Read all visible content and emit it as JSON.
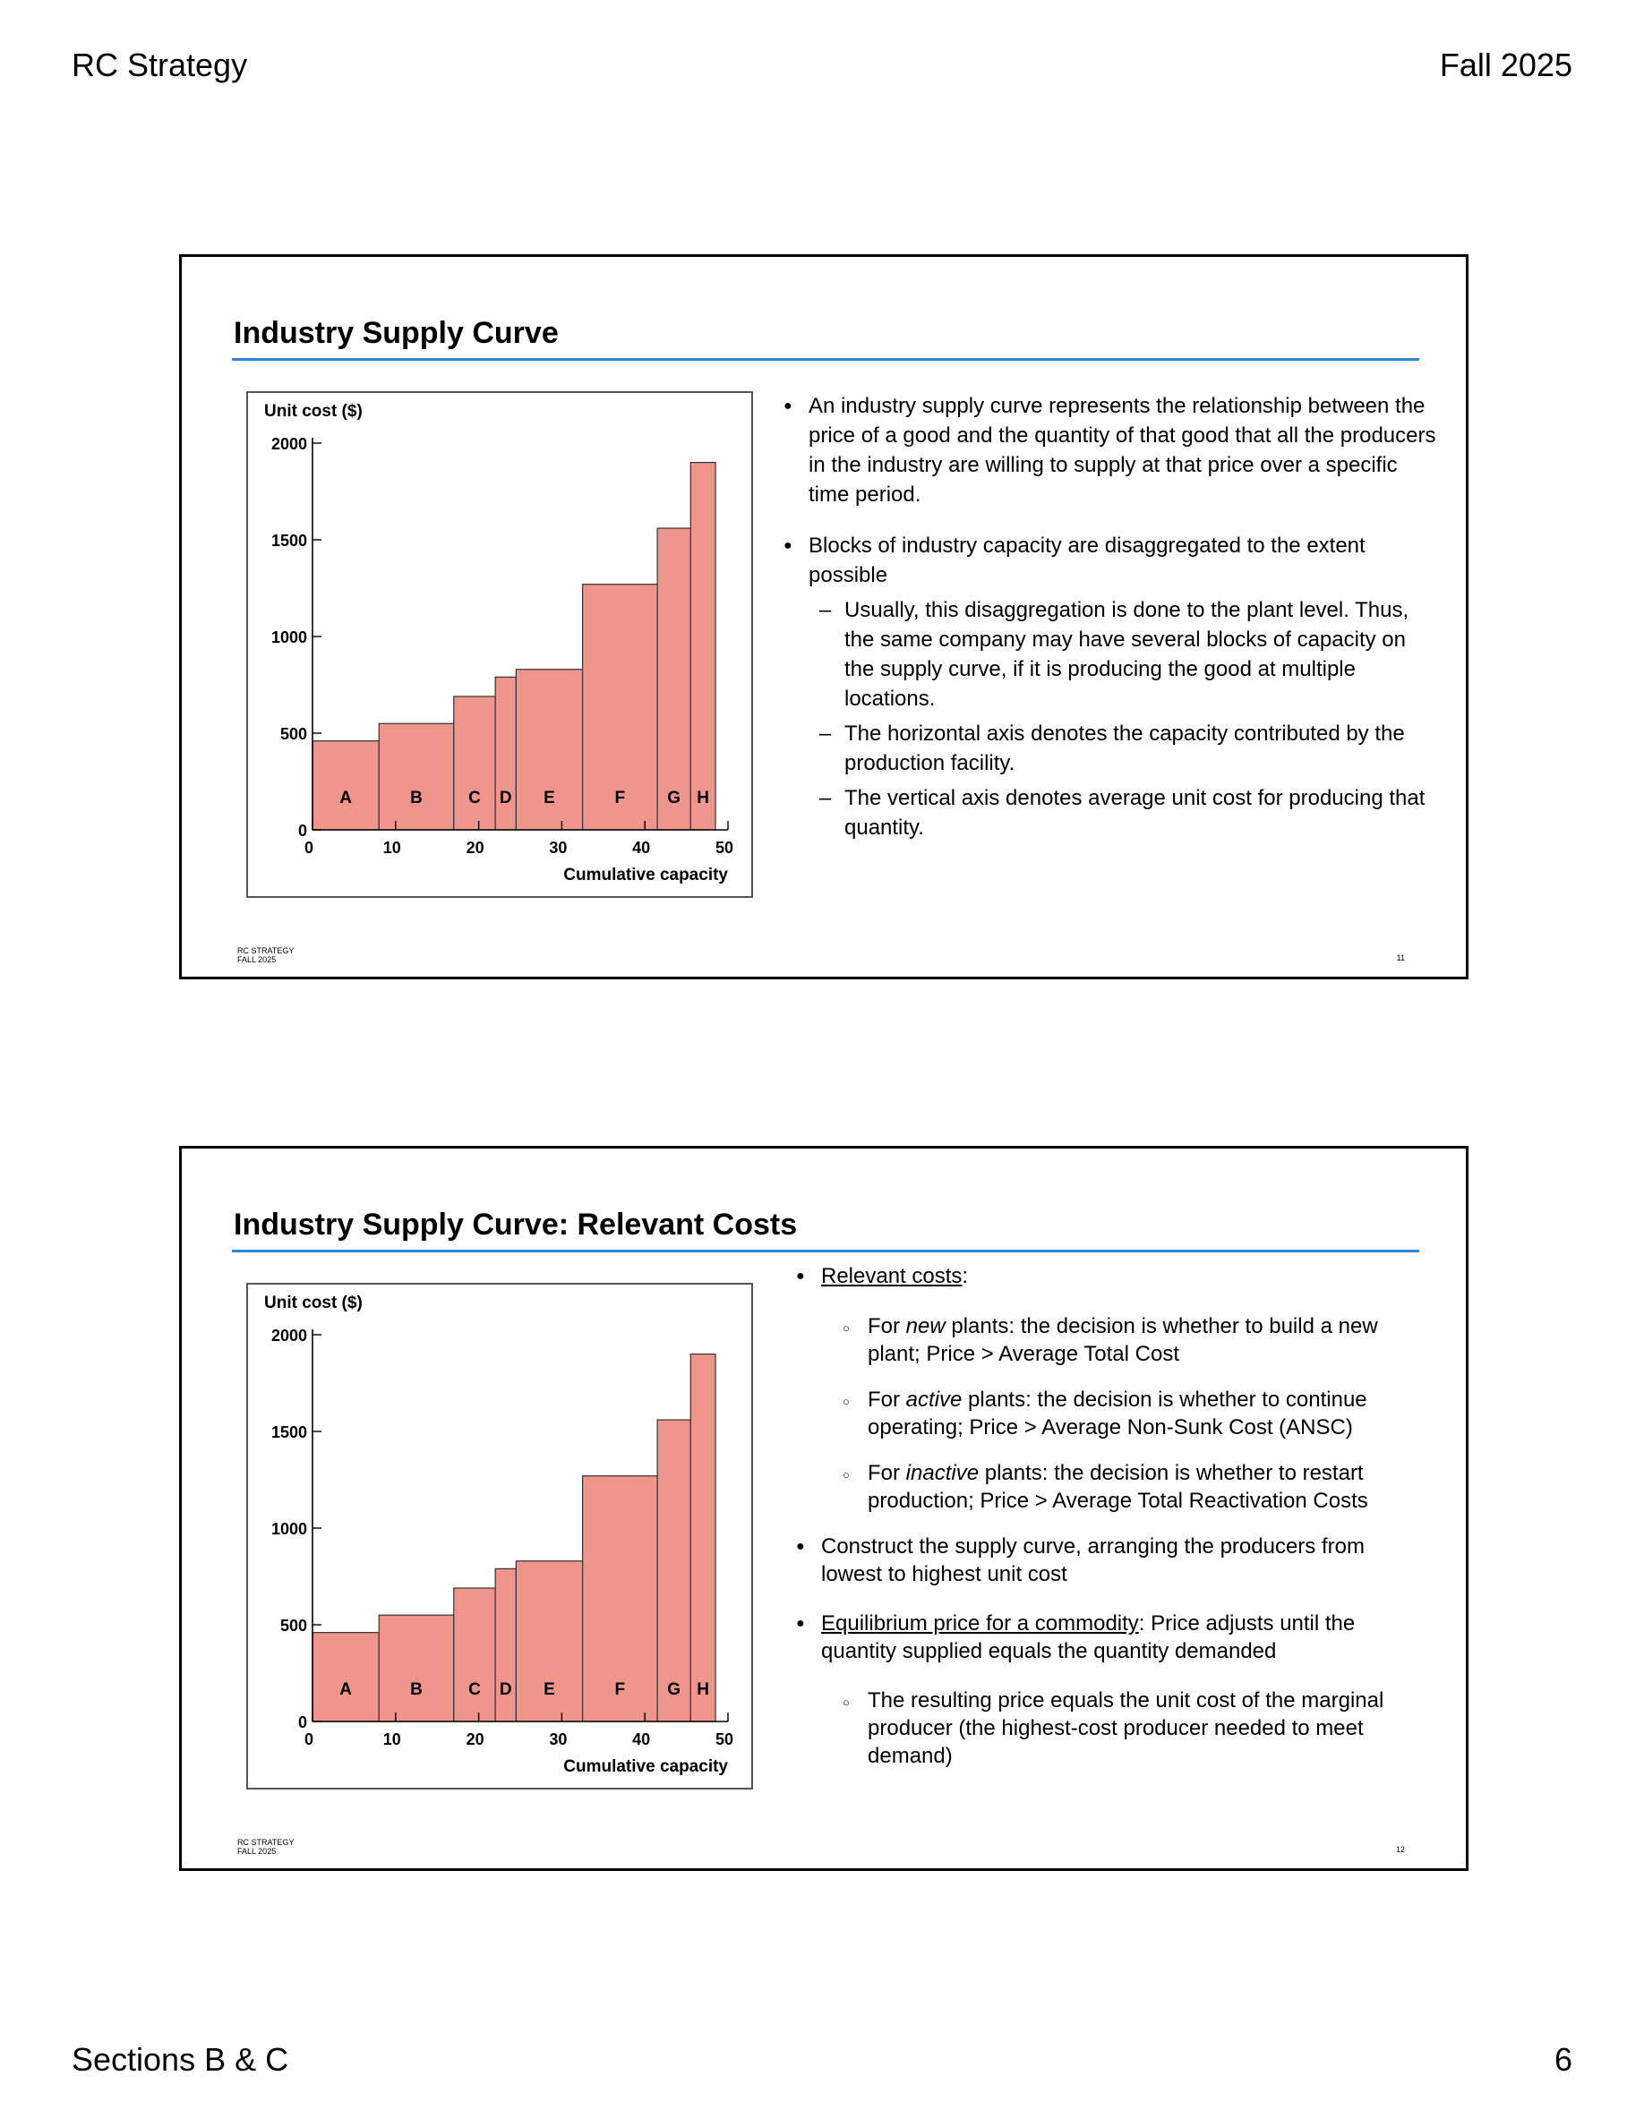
{
  "header": {
    "left": "RC Strategy",
    "right": "Fall 2025"
  },
  "footer": {
    "left": "Sections B & C",
    "right": "6"
  },
  "slides": [
    {
      "title": "Industry Supply Curve",
      "footer_line1": "RC STRATEGY",
      "footer_line2": "FALL 2025",
      "number": "11",
      "bullets": {
        "b1": "An industry supply curve represents the relationship between the price of a good and the quantity of that good that all the producers in the industry are willing to supply at that price over a specific time period.",
        "b2": "Blocks of industry capacity are disaggregated to the extent possible",
        "s1": "Usually, this disaggregation is done to the plant level. Thus, the same company may have several blocks of capacity on the supply curve, if it is producing the good at multiple locations.",
        "s2": "The horizontal axis denotes the capacity contributed by the production facility.",
        "s3": "The vertical axis denotes average unit cost for producing that quantity."
      }
    },
    {
      "title": "Industry Supply Curve: Relevant Costs",
      "footer_line1": "RC STRATEGY",
      "footer_line2": "FALL 2025",
      "number": "12",
      "bullets": {
        "b1_u": "Relevant costs",
        "b1_rest": ":",
        "c1_a": "For ",
        "c1_i": "new",
        "c1_b": " plants:  the decision is whether to build a new plant; Price > Average Total Cost",
        "c2_a": "For ",
        "c2_i": "active",
        "c2_b": " plants: the decision is whether to continue operating; Price > Average Non-Sunk Cost (ANSC)",
        "c3_a": "For ",
        "c3_i": "inactive",
        "c3_b": " plants: the decision is whether to restart production; Price > Average Total Reactivation Costs",
        "b2": "Construct the supply curve, arranging the producers from lowest to highest unit cost",
        "b3_u": "Equilibrium price for a commodity",
        "b3_rest": ": Price adjusts until the quantity supplied equals the quantity demanded",
        "c4": "The resulting price equals the unit cost of the marginal producer (the highest-cost producer needed to meet demand)"
      }
    }
  ],
  "chart_data": [
    {
      "type": "bar",
      "ylabel": "Unit cost ($)",
      "xlabel": "Cumulative capacity",
      "xlim": [
        0,
        50
      ],
      "ylim": [
        0,
        2000
      ],
      "xticks": [
        0,
        10,
        20,
        30,
        40,
        50
      ],
      "yticks": [
        0,
        500,
        1000,
        1500,
        2000
      ],
      "color": "#ef958c",
      "blocks": [
        {
          "label": "A",
          "x0": 0,
          "x1": 8,
          "y": 460
        },
        {
          "label": "B",
          "x0": 8,
          "x1": 17,
          "y": 550
        },
        {
          "label": "C",
          "x0": 17,
          "x1": 22,
          "y": 690
        },
        {
          "label": "D",
          "x0": 22,
          "x1": 24.5,
          "y": 790
        },
        {
          "label": "E",
          "x0": 24.5,
          "x1": 32.5,
          "y": 830
        },
        {
          "label": "F",
          "x0": 32.5,
          "x1": 41.5,
          "y": 1270
        },
        {
          "label": "G",
          "x0": 41.5,
          "x1": 45.5,
          "y": 1560
        },
        {
          "label": "H",
          "x0": 45.5,
          "x1": 48.5,
          "y": 1900
        }
      ]
    },
    {
      "type": "bar",
      "ylabel": "Unit cost ($)",
      "xlabel": "Cumulative capacity",
      "xlim": [
        0,
        50
      ],
      "ylim": [
        0,
        2000
      ],
      "xticks": [
        0,
        10,
        20,
        30,
        40,
        50
      ],
      "yticks": [
        0,
        500,
        1000,
        1500,
        2000
      ],
      "color": "#ef958c",
      "blocks": [
        {
          "label": "A",
          "x0": 0,
          "x1": 8,
          "y": 460
        },
        {
          "label": "B",
          "x0": 8,
          "x1": 17,
          "y": 550
        },
        {
          "label": "C",
          "x0": 17,
          "x1": 22,
          "y": 690
        },
        {
          "label": "D",
          "x0": 22,
          "x1": 24.5,
          "y": 790
        },
        {
          "label": "E",
          "x0": 24.5,
          "x1": 32.5,
          "y": 830
        },
        {
          "label": "F",
          "x0": 32.5,
          "x1": 41.5,
          "y": 1270
        },
        {
          "label": "G",
          "x0": 41.5,
          "x1": 45.5,
          "y": 1560
        },
        {
          "label": "H",
          "x0": 45.5,
          "x1": 48.5,
          "y": 1900
        }
      ]
    }
  ]
}
